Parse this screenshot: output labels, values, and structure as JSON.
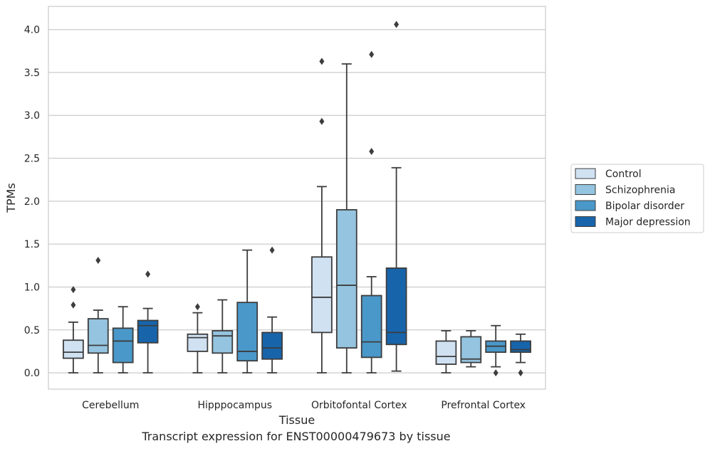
{
  "caption": "Transcript expression for ENST00000479673 by tissue",
  "chart_data": {
    "type": "box",
    "xlabel": "Tissue",
    "ylabel": "TPMs",
    "ylim": [
      -0.19,
      4.27
    ],
    "yticks": [
      "0.0",
      "0.5",
      "1.0",
      "1.5",
      "2.0",
      "2.5",
      "3.0",
      "3.5",
      "4.0"
    ],
    "grid": true,
    "legend_position": "right",
    "categories": [
      "Cerebellum",
      "Hipppocampus",
      "Orbitofontal Cortex",
      "Prefrontal Cortex"
    ],
    "series": [
      {
        "name": "Control",
        "color": "#d0e1f2",
        "boxes": [
          {
            "min": 0.0,
            "q1": 0.17,
            "median": 0.24,
            "q3": 0.38,
            "max": 0.59,
            "outliers": [
              0.97,
              0.79
            ]
          },
          {
            "min": 0.0,
            "q1": 0.25,
            "median": 0.41,
            "q3": 0.45,
            "max": 0.7,
            "outliers": [
              0.77
            ]
          },
          {
            "min": 0.0,
            "q1": 0.47,
            "median": 0.88,
            "q3": 1.35,
            "max": 2.17,
            "outliers": [
              3.63,
              2.93
            ]
          },
          {
            "min": 0.0,
            "q1": 0.1,
            "median": 0.19,
            "q3": 0.37,
            "max": 0.49,
            "outliers": []
          }
        ]
      },
      {
        "name": "Schizophrenia",
        "color": "#94c4df",
        "boxes": [
          {
            "min": 0.0,
            "q1": 0.23,
            "median": 0.32,
            "q3": 0.63,
            "max": 0.73,
            "outliers": [
              1.31
            ]
          },
          {
            "min": 0.0,
            "q1": 0.23,
            "median": 0.43,
            "q3": 0.49,
            "max": 0.85,
            "outliers": []
          },
          {
            "min": 0.0,
            "q1": 0.29,
            "median": 1.02,
            "q3": 1.9,
            "max": 3.6,
            "outliers": []
          },
          {
            "min": 0.07,
            "q1": 0.12,
            "median": 0.16,
            "q3": 0.42,
            "max": 0.49,
            "outliers": []
          }
        ]
      },
      {
        "name": "Bipolar disorder",
        "color": "#4a98c9",
        "boxes": [
          {
            "min": 0.0,
            "q1": 0.12,
            "median": 0.37,
            "q3": 0.52,
            "max": 0.77,
            "outliers": []
          },
          {
            "min": 0.0,
            "q1": 0.14,
            "median": 0.25,
            "q3": 0.82,
            "max": 1.43,
            "outliers": []
          },
          {
            "min": 0.0,
            "q1": 0.18,
            "median": 0.36,
            "q3": 0.9,
            "max": 1.12,
            "outliers": [
              3.71,
              2.58
            ]
          },
          {
            "min": 0.07,
            "q1": 0.24,
            "median": 0.31,
            "q3": 0.37,
            "max": 0.55,
            "outliers": [
              0.0
            ]
          }
        ]
      },
      {
        "name": "Major depression",
        "color": "#1764ab",
        "boxes": [
          {
            "min": 0.0,
            "q1": 0.35,
            "median": 0.55,
            "q3": 0.61,
            "max": 0.75,
            "outliers": [
              1.15
            ]
          },
          {
            "min": 0.0,
            "q1": 0.16,
            "median": 0.29,
            "q3": 0.47,
            "max": 0.65,
            "outliers": [
              1.43
            ]
          },
          {
            "min": 0.02,
            "q1": 0.33,
            "median": 0.47,
            "q3": 1.22,
            "max": 2.39,
            "outliers": [
              4.06
            ]
          },
          {
            "min": 0.12,
            "q1": 0.24,
            "median": 0.27,
            "q3": 0.37,
            "max": 0.45,
            "outliers": [
              0.0
            ]
          }
        ]
      }
    ]
  }
}
